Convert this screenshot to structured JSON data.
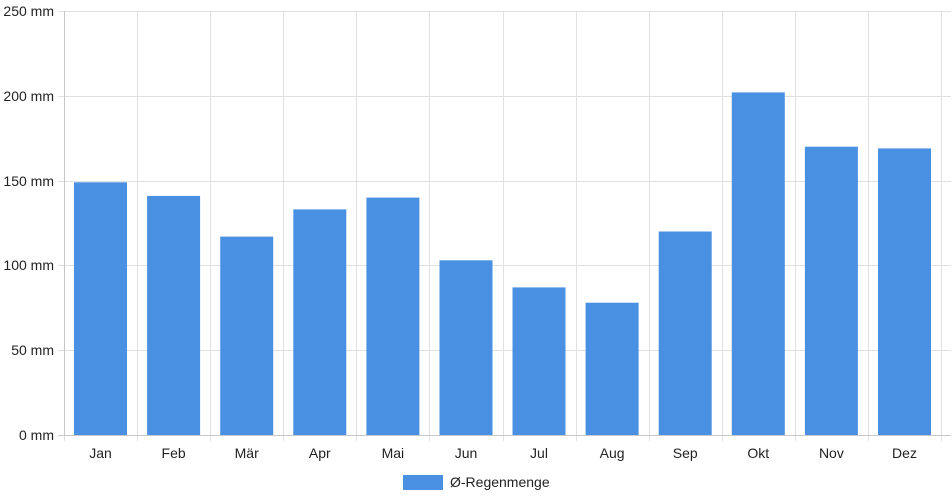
{
  "chart_data": {
    "type": "bar",
    "categories": [
      "Jan",
      "Feb",
      "Mär",
      "Apr",
      "Mai",
      "Jun",
      "Jul",
      "Aug",
      "Sep",
      "Okt",
      "Nov",
      "Dez"
    ],
    "series": [
      {
        "name": "Ø-Regenmenge",
        "values": [
          149,
          141,
          117,
          133,
          140,
          103,
          87,
          78,
          120,
          202,
          170,
          169
        ]
      }
    ],
    "ylim": [
      0,
      250
    ],
    "yticks": [
      0,
      50,
      100,
      150,
      200,
      250
    ],
    "yunit": "mm",
    "ytick_labels": [
      "0 mm",
      "50 mm",
      "100 mm",
      "150 mm",
      "200 mm",
      "250 mm"
    ],
    "grid": true,
    "legend_position": "bottom-center",
    "colors": {
      "bar": "#4a90e2",
      "grid": "#e0e0e0",
      "axis": "#c8c8c8"
    }
  }
}
